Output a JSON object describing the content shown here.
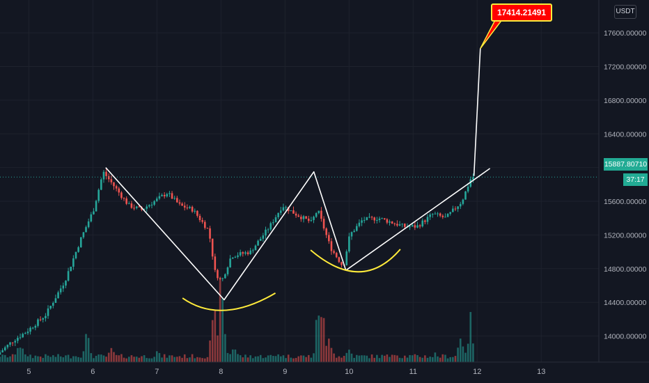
{
  "currency_button": "USDT",
  "current_price_label": "15887.80710",
  "countdown_label": "37:17",
  "callout_label": "17414.21491",
  "colors": {
    "background": "#131722",
    "grid": "#1e222d",
    "up": "#26a69a",
    "down": "#ef5350",
    "drawing": "#ffffff",
    "arc": "#ffeb3b",
    "callout_fill": "#ff0000",
    "callout_border": "#ffeb3b",
    "price_tag": "#22ab94"
  },
  "chart_data": {
    "type": "candlestick",
    "title": "",
    "xlabel": "",
    "ylabel": "",
    "x_ticks": [
      "5",
      "6",
      "7",
      "8",
      "9",
      "10",
      "11",
      "12",
      "13"
    ],
    "y_ticks": [
      "17600.00000",
      "17200.00000",
      "16800.00000",
      "16400.00000",
      "16000.00000",
      "15600.00000",
      "15200.00000",
      "14800.00000",
      "14400.00000",
      "14000.00000"
    ],
    "x_range": [
      4.55,
      13.9
    ],
    "y_range": [
      13690,
      17990
    ],
    "grid": true,
    "current_price": 15887.8071,
    "annotation_value": 17414.21491,
    "price_anchors": [
      [
        4.55,
        13780
      ],
      [
        4.8,
        13950
      ],
      [
        5.0,
        14050
      ],
      [
        5.3,
        14250
      ],
      [
        5.6,
        14650
      ],
      [
        5.85,
        15150
      ],
      [
        6.05,
        15500
      ],
      [
        6.2,
        15950
      ],
      [
        6.4,
        15750
      ],
      [
        6.6,
        15550
      ],
      [
        6.8,
        15500
      ],
      [
        7.0,
        15600
      ],
      [
        7.2,
        15700
      ],
      [
        7.4,
        15550
      ],
      [
        7.6,
        15500
      ],
      [
        7.85,
        15250
      ],
      [
        7.95,
        14750
      ],
      [
        8.05,
        14650
      ],
      [
        8.2,
        14950
      ],
      [
        8.5,
        15000
      ],
      [
        8.8,
        15300
      ],
      [
        9.0,
        15550
      ],
      [
        9.2,
        15450
      ],
      [
        9.45,
        15350
      ],
      [
        9.55,
        15500
      ],
      [
        9.75,
        15050
      ],
      [
        9.95,
        14820
      ],
      [
        10.05,
        15200
      ],
      [
        10.25,
        15380
      ],
      [
        10.5,
        15400
      ],
      [
        10.7,
        15350
      ],
      [
        10.9,
        15300
      ],
      [
        11.1,
        15300
      ],
      [
        11.35,
        15450
      ],
      [
        11.55,
        15400
      ],
      [
        11.8,
        15600
      ],
      [
        11.95,
        15887
      ]
    ],
    "volume_peaks": [
      [
        4.55,
        0.08
      ],
      [
        4.85,
        0.25
      ],
      [
        5.0,
        0.1
      ],
      [
        5.7,
        0.1
      ],
      [
        5.9,
        0.3
      ],
      [
        6.3,
        0.15
      ],
      [
        7.0,
        0.12
      ],
      [
        7.9,
        0.5
      ],
      [
        8.0,
        0.85
      ],
      [
        8.2,
        0.2
      ],
      [
        8.9,
        0.12
      ],
      [
        9.55,
        0.8
      ],
      [
        9.7,
        0.3
      ],
      [
        10.0,
        0.15
      ],
      [
        10.7,
        0.15
      ],
      [
        11.35,
        0.1
      ],
      [
        11.75,
        0.3
      ],
      [
        11.9,
        0.45
      ]
    ],
    "drawn_lines": [
      {
        "points": [
          [
            6.2,
            16000
          ],
          [
            8.05,
            14430
          ],
          [
            9.45,
            15950
          ],
          [
            9.95,
            14780
          ],
          [
            12.2,
            15990
          ]
        ]
      },
      {
        "points": [
          [
            11.95,
            15900
          ],
          [
            12.05,
            17414.21491
          ]
        ]
      }
    ],
    "drawn_arcs": [
      {
        "start": [
          7.4,
          14450
        ],
        "control": [
          8.0,
          14130
        ],
        "end": [
          8.85,
          14510
        ]
      },
      {
        "start": [
          9.4,
          15020
        ],
        "control": [
          10.2,
          14500
        ],
        "end": [
          10.8,
          15030
        ]
      }
    ]
  }
}
